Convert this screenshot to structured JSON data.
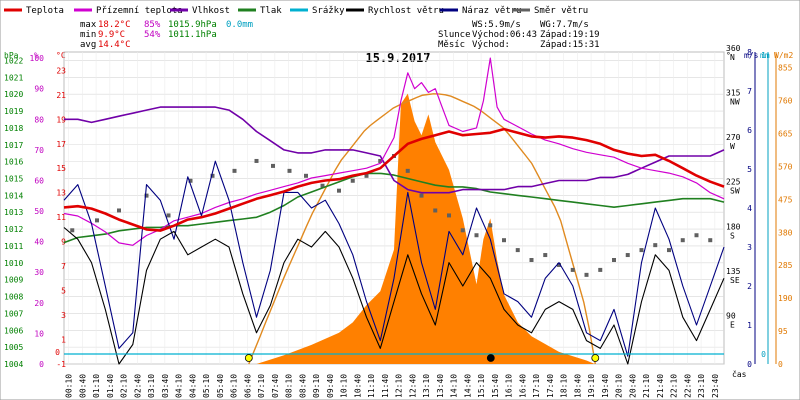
{
  "date_title": "15.9.2017",
  "legend": [
    {
      "label": "Teplota",
      "color": "#e00000"
    },
    {
      "label": "Přízemní teplota",
      "color": "#d000d0"
    },
    {
      "label": "Vlhkost",
      "color": "#7000a8"
    },
    {
      "label": "Tlak",
      "color": "#208020"
    },
    {
      "label": "Srážky",
      "color": "#00b0d0"
    },
    {
      "label": "Rychlost větru",
      "color": "#000000"
    },
    {
      "label": "Náraz větru",
      "color": "#000080"
    },
    {
      "label": "Směr větru",
      "color": "#606060"
    }
  ],
  "stats": {
    "max": {
      "label": "max",
      "temp": "18.2°C",
      "hum": "85%",
      "press": "1015.9hPa",
      "rain": "0.0mm"
    },
    "min": {
      "label": "min",
      "temp": " 9.9°C",
      "hum": "54%",
      "press": "1011.1hPa"
    },
    "avg": {
      "label": "avg",
      "temp": "14.4°C"
    },
    "ws": "WS:5.9m/s",
    "wg": "WG:7.7m/s",
    "sun": {
      "label": "Slunce",
      "rise": "Východ:06:43",
      "set": "Západ:19:19"
    },
    "moon": {
      "label": "Měsíc",
      "rise": "Východ:",
      "set": "Západ:15:31"
    }
  },
  "axes_units": {
    "left_pressure": "hPa",
    "left_humidity": "%",
    "left_temp": "°C",
    "right_direction": "°",
    "right_wind": "m/s",
    "right_rain": "mm",
    "right_solar": "W/m2",
    "x_time": "čas"
  },
  "axis_labels": {
    "pressure": [
      "1004",
      "1005",
      "1006",
      "1007",
      "1008",
      "1009",
      "1010",
      "1011",
      "1012",
      "1013",
      "1014",
      "1015",
      "1016",
      "1017",
      "1018",
      "1019",
      "1020",
      "1021",
      "1022"
    ],
    "humidity": [
      "0",
      "10",
      "20",
      "30",
      "40",
      "50",
      "60",
      "70",
      "80",
      "90",
      "100"
    ],
    "temperature": [
      "-1",
      "1",
      "3",
      "5",
      "7",
      "9",
      "11",
      "13",
      "15",
      "17",
      "19",
      "21",
      "23"
    ],
    "temperature_below": [
      "0"
    ],
    "direction": [
      "90 E",
      "135 SE",
      "180 S",
      "225 SW",
      "270 W",
      "315 NW",
      "360 N"
    ],
    "wind": [
      "0",
      "1",
      "2",
      "3",
      "4",
      "5",
      "6",
      "7",
      "8"
    ],
    "rain": [
      "0",
      "1"
    ],
    "solar": [
      "0",
      "95",
      "190",
      "285",
      "380",
      "475",
      "570",
      "665",
      "760",
      "855"
    ]
  },
  "colors": {
    "temp_left_axis": "#e00000",
    "humidity_axis": "#c000c0",
    "pressure_axis": "#008000",
    "wind_axis": "#000080",
    "rain_axis": "#00a0c0",
    "solar_axis": "#e07800",
    "solar_fill": "#ff8000",
    "sun_curve": "#e08a20",
    "grid": "#d8d8d8",
    "sun_marker": "#ffff00"
  },
  "chart_data": {
    "type": "line",
    "x_unit": "hours",
    "x_ticks": [
      "00:10",
      "00:40",
      "01:10",
      "01:40",
      "02:10",
      "02:40",
      "03:10",
      "03:40",
      "04:10",
      "04:40",
      "05:10",
      "05:40",
      "06:10",
      "06:40",
      "07:10",
      "07:40",
      "08:10",
      "08:40",
      "09:10",
      "09:40",
      "10:10",
      "10:40",
      "11:10",
      "11:40",
      "12:10",
      "12:40",
      "13:10",
      "13:40",
      "14:10",
      "14:40",
      "15:10",
      "15:40",
      "16:10",
      "16:40",
      "17:10",
      "17:40",
      "18:10",
      "18:40",
      "19:10",
      "19:40",
      "20:10",
      "20:40",
      "21:10",
      "21:40",
      "22:10",
      "22:40",
      "23:10",
      "23:40"
    ],
    "x_range": [
      0,
      24
    ],
    "temperature_range": [
      -1,
      24.5
    ],
    "humidity_range": [
      0,
      102
    ],
    "pressure_range": [
      1004,
      1022.5
    ],
    "wind_range": [
      0,
      8
    ],
    "direction_range": [
      45,
      360
    ],
    "solar_range": [
      0,
      900
    ],
    "grid": true,
    "legend_position": "top",
    "series": [
      {
        "name": "Teplota",
        "axis": "temperature",
        "x": [
          0,
          0.5,
          1,
          1.5,
          2,
          2.5,
          3,
          3.5,
          4,
          4.5,
          5,
          5.5,
          6,
          6.5,
          7,
          7.5,
          8,
          8.5,
          9,
          9.5,
          10,
          10.5,
          11,
          11.5,
          12,
          12.5,
          13,
          13.5,
          14,
          14.5,
          15,
          15.5,
          16,
          16.5,
          17,
          17.5,
          18,
          18.5,
          19,
          19.5,
          20,
          20.5,
          21,
          21.5,
          22,
          22.5,
          23,
          23.5,
          24
        ],
        "y": [
          11.8,
          11.9,
          11.7,
          11.3,
          10.8,
          10.4,
          10.0,
          9.9,
          10.3,
          10.8,
          11.0,
          11.3,
          11.7,
          12.1,
          12.5,
          12.8,
          13.1,
          13.5,
          13.8,
          14.0,
          14.1,
          14.4,
          14.6,
          15.0,
          16.0,
          17.0,
          17.4,
          17.7,
          18.0,
          17.7,
          17.8,
          17.9,
          18.2,
          17.9,
          17.6,
          17.5,
          17.6,
          17.5,
          17.3,
          17.0,
          16.5,
          16.2,
          16.0,
          16.1,
          15.6,
          15.0,
          14.4,
          13.9,
          13.5
        ]
      },
      {
        "name": "Přízemní teplota",
        "axis": "temperature",
        "x": [
          0,
          0.5,
          1,
          1.5,
          2,
          2.5,
          3,
          3.5,
          4,
          4.5,
          5,
          5.5,
          6,
          6.5,
          7,
          7.5,
          8,
          8.5,
          9,
          9.5,
          10,
          10.5,
          11,
          11.5,
          12,
          12.25,
          12.5,
          12.75,
          13,
          13.25,
          13.5,
          13.75,
          14,
          14.5,
          15,
          15.25,
          15.5,
          15.75,
          16,
          16.5,
          17,
          17.5,
          18,
          18.5,
          19,
          19.5,
          20,
          20.5,
          21,
          21.5,
          22,
          22.5,
          23,
          23.5,
          24
        ],
        "y": [
          11.3,
          11.1,
          10.5,
          9.8,
          8.9,
          8.7,
          9.5,
          10.0,
          10.7,
          11.0,
          11.3,
          11.8,
          12.2,
          12.5,
          12.9,
          13.2,
          13.5,
          13.8,
          14.2,
          14.4,
          14.6,
          14.8,
          15.0,
          15.4,
          17.5,
          20.5,
          22.8,
          21.5,
          22.0,
          21.2,
          21.5,
          20.0,
          18.5,
          18.0,
          18.3,
          20.5,
          24.0,
          20.0,
          19.0,
          18.4,
          17.8,
          17.3,
          17.0,
          16.6,
          16.3,
          16.1,
          15.9,
          15.4,
          15.0,
          14.8,
          14.6,
          14.3,
          13.8,
          13.0,
          12.5
        ]
      },
      {
        "name": "Vlhkost",
        "axis": "humidity",
        "x": [
          0,
          0.5,
          1,
          1.5,
          2,
          2.5,
          3,
          3.5,
          4,
          4.5,
          5,
          5.5,
          6,
          6.5,
          7,
          7.5,
          8,
          8.5,
          9,
          9.5,
          10,
          10.5,
          11,
          11.5,
          12,
          12.5,
          13,
          13.5,
          14,
          14.5,
          15,
          15.5,
          16,
          16.5,
          17,
          17.5,
          18,
          18.5,
          19,
          19.5,
          20,
          20.5,
          21,
          21.5,
          22,
          22.5,
          23,
          23.5,
          24
        ],
        "y": [
          80,
          80,
          79,
          80,
          81,
          82,
          83,
          84,
          84,
          84,
          84,
          84,
          83,
          80,
          76,
          73,
          70,
          69,
          69,
          70,
          70,
          70,
          69,
          68,
          60,
          57,
          56,
          56,
          56,
          57,
          57,
          57,
          57,
          58,
          58,
          59,
          60,
          60,
          60,
          61,
          61,
          62,
          64,
          66,
          68,
          68,
          68,
          68,
          70
        ]
      },
      {
        "name": "Tlak",
        "axis": "pressure",
        "x": [
          0,
          0.5,
          1,
          1.5,
          2,
          2.5,
          3,
          3.5,
          4,
          4.5,
          5,
          5.5,
          6,
          6.5,
          7,
          7.5,
          8,
          8.5,
          9,
          9.5,
          10,
          10.5,
          11,
          11.5,
          12,
          12.5,
          13,
          13.5,
          14,
          14.5,
          15,
          15.5,
          16,
          16.5,
          17,
          17.5,
          18,
          18.5,
          19,
          19.5,
          20,
          20.5,
          21,
          21.5,
          22,
          22.5,
          23,
          23.5,
          24
        ],
        "y": [
          1011.2,
          1011.5,
          1011.6,
          1011.7,
          1011.9,
          1012.0,
          1012.1,
          1012.1,
          1012.2,
          1012.2,
          1012.3,
          1012.4,
          1012.5,
          1012.6,
          1012.7,
          1013.0,
          1013.4,
          1013.9,
          1014.2,
          1014.5,
          1014.8,
          1015.1,
          1015.3,
          1015.3,
          1015.2,
          1015.0,
          1014.8,
          1014.6,
          1014.5,
          1014.5,
          1014.4,
          1014.2,
          1014.1,
          1014.0,
          1013.9,
          1013.8,
          1013.7,
          1013.6,
          1013.5,
          1013.4,
          1013.3,
          1013.4,
          1013.5,
          1013.6,
          1013.7,
          1013.8,
          1013.8,
          1013.8,
          1013.6
        ]
      },
      {
        "name": "Rychlost větru",
        "axis": "wind",
        "x": [
          0,
          0.5,
          1,
          1.5,
          2,
          2.5,
          3,
          3.5,
          4,
          4.5,
          5,
          5.5,
          6,
          6.5,
          7,
          7.5,
          8,
          8.5,
          9,
          9.5,
          10,
          10.5,
          11,
          11.5,
          12,
          12.5,
          13,
          13.5,
          14,
          14.5,
          15,
          15.5,
          16,
          16.5,
          17,
          17.5,
          18,
          18.5,
          19,
          19.5,
          20,
          20.5,
          21,
          21.5,
          22,
          22.5,
          23,
          23.5,
          24
        ],
        "y": [
          3.5,
          3.2,
          2.6,
          1.4,
          0.0,
          0.5,
          2.4,
          3.2,
          3.4,
          2.8,
          3.0,
          3.2,
          3.0,
          1.8,
          0.8,
          1.5,
          2.6,
          3.2,
          3.0,
          3.4,
          3.0,
          2.2,
          1.2,
          0.4,
          1.6,
          2.8,
          1.8,
          1.0,
          2.6,
          2.0,
          2.6,
          2.2,
          1.4,
          1.0,
          0.8,
          1.4,
          1.6,
          1.4,
          0.6,
          0.4,
          1.0,
          0.0,
          1.6,
          2.8,
          2.4,
          1.2,
          0.6,
          1.4,
          2.2
        ]
      },
      {
        "name": "Náraz větru",
        "axis": "wind",
        "x": [
          0,
          0.5,
          1,
          1.5,
          2,
          2.5,
          3,
          3.5,
          4,
          4.5,
          5,
          5.5,
          6,
          6.5,
          7,
          7.5,
          8,
          8.5,
          9,
          9.5,
          10,
          10.5,
          11,
          11.5,
          12,
          12.5,
          13,
          13.5,
          14,
          14.5,
          15,
          15.5,
          16,
          16.5,
          17,
          17.5,
          18,
          18.5,
          19,
          19.5,
          20,
          20.5,
          21,
          21.5,
          22,
          22.5,
          23,
          23.5,
          24
        ],
        "y": [
          4.2,
          4.6,
          3.6,
          2.0,
          0.4,
          0.8,
          4.6,
          4.2,
          3.2,
          4.8,
          3.8,
          5.2,
          4.2,
          2.6,
          1.2,
          2.4,
          4.4,
          4.4,
          4.0,
          4.2,
          3.6,
          2.8,
          1.6,
          0.6,
          2.2,
          4.4,
          2.6,
          1.4,
          3.4,
          2.8,
          4.0,
          3.2,
          1.8,
          1.6,
          1.2,
          2.2,
          2.6,
          2.0,
          0.8,
          0.6,
          1.4,
          0.2,
          2.6,
          4.0,
          3.2,
          2.0,
          1.0,
          2.0,
          3.0
        ]
      },
      {
        "name": "Směr větru",
        "axis": "direction",
        "style": "points",
        "x": [
          0.3,
          1.2,
          2.0,
          3.0,
          3.8,
          4.6,
          5.4,
          6.2,
          7.0,
          7.6,
          8.2,
          8.8,
          9.4,
          10.0,
          10.5,
          11.0,
          11.5,
          12.0,
          12.5,
          13.0,
          13.5,
          14.0,
          14.5,
          15.0,
          15.5,
          16.0,
          16.5,
          17.0,
          17.5,
          18.0,
          18.5,
          19.0,
          19.5,
          20.0,
          20.5,
          21.0,
          21.5,
          22.0,
          22.5,
          23.0,
          23.5
        ],
        "y": [
          180,
          190,
          200,
          215,
          195,
          230,
          235,
          240,
          250,
          245,
          240,
          235,
          225,
          220,
          230,
          235,
          250,
          255,
          240,
          215,
          200,
          195,
          180,
          175,
          185,
          170,
          160,
          150,
          155,
          145,
          140,
          135,
          140,
          150,
          155,
          160,
          165,
          160,
          170,
          175,
          170
        ]
      },
      {
        "name": "Sluneční záření",
        "axis": "solar",
        "style": "area",
        "x": [
          7.0,
          8.0,
          9.0,
          10.0,
          10.5,
          11.0,
          11.5,
          12.0,
          12.25,
          12.5,
          12.75,
          13.0,
          13.25,
          13.5,
          14.0,
          14.5,
          15.0,
          15.25,
          15.5,
          15.75,
          16.0,
          16.5,
          17.0,
          18.0,
          19.0,
          19.3
        ],
        "y": [
          0,
          25,
          55,
          90,
          120,
          170,
          210,
          330,
          750,
          780,
          700,
          660,
          720,
          640,
          560,
          420,
          230,
          360,
          420,
          300,
          200,
          120,
          80,
          35,
          10,
          0
        ]
      },
      {
        "name": "Poloha slunce",
        "axis": "solar",
        "style": "curve",
        "x": [
          6.72,
          8.0,
          9.0,
          10.0,
          11.0,
          12.0,
          13.0,
          13.5,
          14.0,
          15.0,
          16.0,
          17.0,
          18.0,
          19.0,
          19.32
        ],
        "y": [
          0,
          250,
          430,
          580,
          680,
          740,
          775,
          780,
          775,
          740,
          680,
          580,
          430,
          150,
          0
        ]
      },
      {
        "name": "Srážky",
        "axis": "rain",
        "style": "line",
        "x": [
          0,
          24
        ],
        "y": [
          0,
          0
        ]
      }
    ],
    "markers": {
      "sunrise_hour": 6.72,
      "sunset_hour": 19.32,
      "moonset_hour": 15.52
    }
  }
}
